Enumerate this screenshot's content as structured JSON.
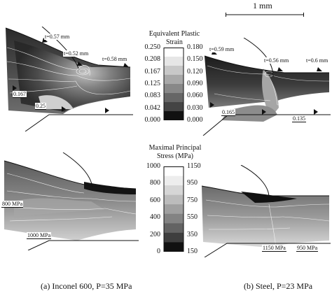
{
  "scale": {
    "label": "1 mm"
  },
  "panel_a_top": {
    "callouts": [
      "t=0.57 mm",
      "t=0.52 mm",
      "t=0.58 mm",
      "0.167",
      "0.25"
    ]
  },
  "panel_b_top": {
    "callouts": [
      "t=0.59 mm",
      "t=0.56 mm",
      "t=0.6 mm",
      "0.165",
      "0.135"
    ]
  },
  "panel_a_bottom": {
    "callouts": [
      "800 MPa",
      "1000 MPa"
    ]
  },
  "panel_b_bottom": {
    "callouts": [
      "1150 MPa",
      "950 MPa"
    ]
  },
  "colorbar_strain": {
    "title_line1": "Equivalent Plastic",
    "title_line2": "Strain",
    "left_labels": [
      "0.250",
      "0.208",
      "0.167",
      "0.125",
      "0.083",
      "0.042",
      "0.000"
    ],
    "right_labels": [
      "0.180",
      "0.150",
      "0.120",
      "0.090",
      "0.060",
      "0.030",
      "0.000"
    ],
    "colors": [
      "#ffffff",
      "#e6e6e6",
      "#c8c8c8",
      "#a8a8a8",
      "#888888",
      "#666666",
      "#444444",
      "#111111"
    ]
  },
  "colorbar_stress": {
    "title_line1": "Maximal Principal",
    "title_line2": "Stress (MPa)",
    "left_labels": [
      "1000",
      "800",
      "600",
      "400",
      "200",
      "0"
    ],
    "right_labels": [
      "1150",
      "950",
      "750",
      "550",
      "350",
      "150"
    ],
    "colors": [
      "#ffffff",
      "#ededed",
      "#d6d6d6",
      "#bcbcbc",
      "#a0a0a0",
      "#838383",
      "#636363",
      "#3e3e3e",
      "#111111"
    ]
  },
  "captions": {
    "a": "(a) Inconel 600, P=35 MPa",
    "b": "(b) Steel, P=23 MPa"
  }
}
